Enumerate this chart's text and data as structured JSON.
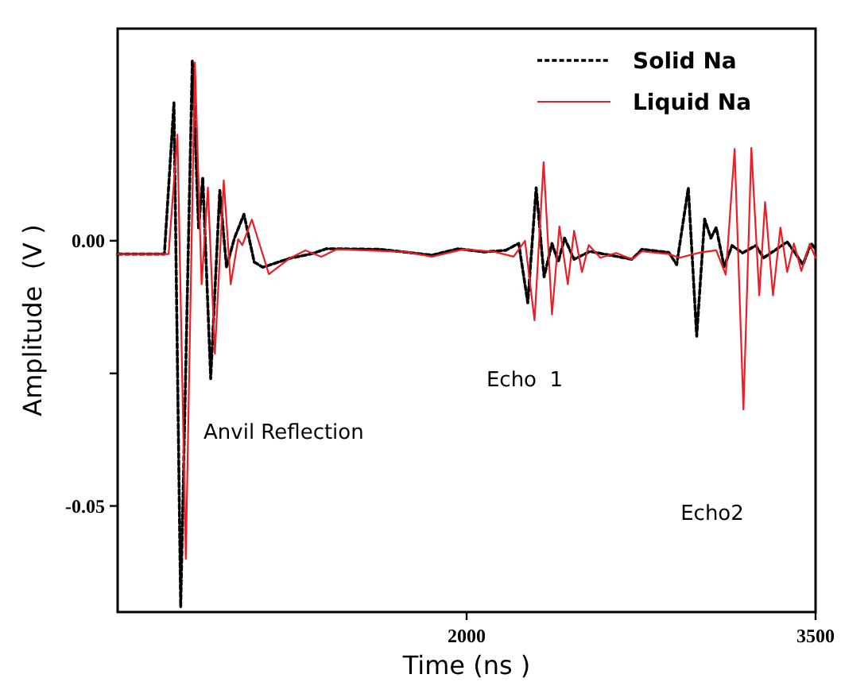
{
  "chart_data": {
    "type": "line",
    "xlabel": "Time (ns )",
    "ylabel": "Amplitude  (V )",
    "xlim": [
      500,
      3500
    ],
    "xticks": [
      2000,
      3500
    ],
    "ylim": [
      -0.07,
      0.04
    ],
    "yticks": [
      {
        "value": 0,
        "label": "0.00"
      },
      {
        "value": -0.025,
        "label": null
      },
      {
        "value": -0.05,
        "label": "-0.05"
      }
    ],
    "legend": "top right",
    "grid": false,
    "marker": "none",
    "annotations": [
      "Anvil Reflection",
      "Echo  1",
      "Echo2"
    ],
    "series": [
      {
        "name": "Solid Na",
        "color": "#000000",
        "line_style": "dashed",
        "x": [
          500,
          701,
          742,
          771,
          821,
          848,
          866,
          900,
          939,
          968,
          1002,
          1043,
          1087,
          1124,
          1240,
          1330,
          1398,
          1624,
          1851,
          1964,
          2075,
          2168,
          2224,
          2263,
          2299,
          2333,
          2367,
          2394,
          2421,
          2462,
          2530,
          2711,
          2754,
          2869,
          2903,
          2953,
          2989,
          3023,
          3050,
          3073,
          3107,
          3141,
          3186,
          3243,
          3277,
          3322,
          3378,
          3412,
          3446,
          3480,
          3500
        ],
        "values": [
          -0.0025,
          -0.0025,
          0.026,
          -0.069,
          0.034,
          0.0023,
          0.012,
          -0.026,
          0.0095,
          -0.005,
          0.0005,
          0.005,
          -0.004,
          -0.005,
          -0.0033,
          -0.0025,
          -0.0015,
          -0.0016,
          -0.0027,
          -0.0015,
          -0.0021,
          -0.0018,
          -0.0005,
          -0.0117,
          0.01,
          -0.0068,
          -0.0005,
          -0.004,
          0.0005,
          -0.0035,
          -0.002,
          -0.0035,
          -0.0016,
          -0.0022,
          -0.0045,
          0.01,
          -0.018,
          0.0041,
          0.0005,
          0.0025,
          -0.0049,
          -0.0009,
          -0.0023,
          -0.0009,
          -0.0032,
          -0.0019,
          -0.0002,
          -0.0023,
          -0.0045,
          -0.0005,
          -0.0015
        ]
      },
      {
        "name": "Liquid Na",
        "color": "#ee1c25",
        "line_style": "solid",
        "x": [
          500,
          719,
          757,
          793,
          832,
          861,
          888,
          918,
          956,
          986,
          1018,
          1036,
          1077,
          1150,
          1240,
          1307,
          1375,
          1443,
          1735,
          1851,
          1986,
          2122,
          2202,
          2251,
          2292,
          2331,
          2367,
          2399,
          2435,
          2462,
          2496,
          2525,
          2575,
          2643,
          2711,
          2754,
          2869,
          2915,
          3005,
          3073,
          3114,
          3152,
          3190,
          3224,
          3258,
          3283,
          3317,
          3349,
          3378,
          3407,
          3439,
          3475,
          3500
        ],
        "values": [
          -0.0025,
          -0.0025,
          0.02,
          -0.06,
          0.0336,
          -0.0082,
          0.01,
          -0.0213,
          0.0114,
          -0.0082,
          0.0003,
          -0.0008,
          0.004,
          -0.0063,
          -0.0033,
          -0.0018,
          -0.003,
          -0.0016,
          -0.0021,
          -0.003,
          -0.0016,
          -0.0021,
          -0.003,
          0,
          -0.015,
          0.0148,
          -0.0139,
          0.0027,
          -0.0082,
          0.0019,
          -0.0059,
          -0.0008,
          -0.0032,
          -0.0023,
          -0.0035,
          -0.002,
          -0.0025,
          -0.0032,
          -0.0022,
          -0.0018,
          -0.0064,
          0.0173,
          -0.0318,
          0.0175,
          -0.0103,
          0.0073,
          -0.0103,
          0.0025,
          -0.0059,
          -0.0005,
          -0.0057,
          -0.0006,
          -0.0032
        ]
      }
    ]
  }
}
